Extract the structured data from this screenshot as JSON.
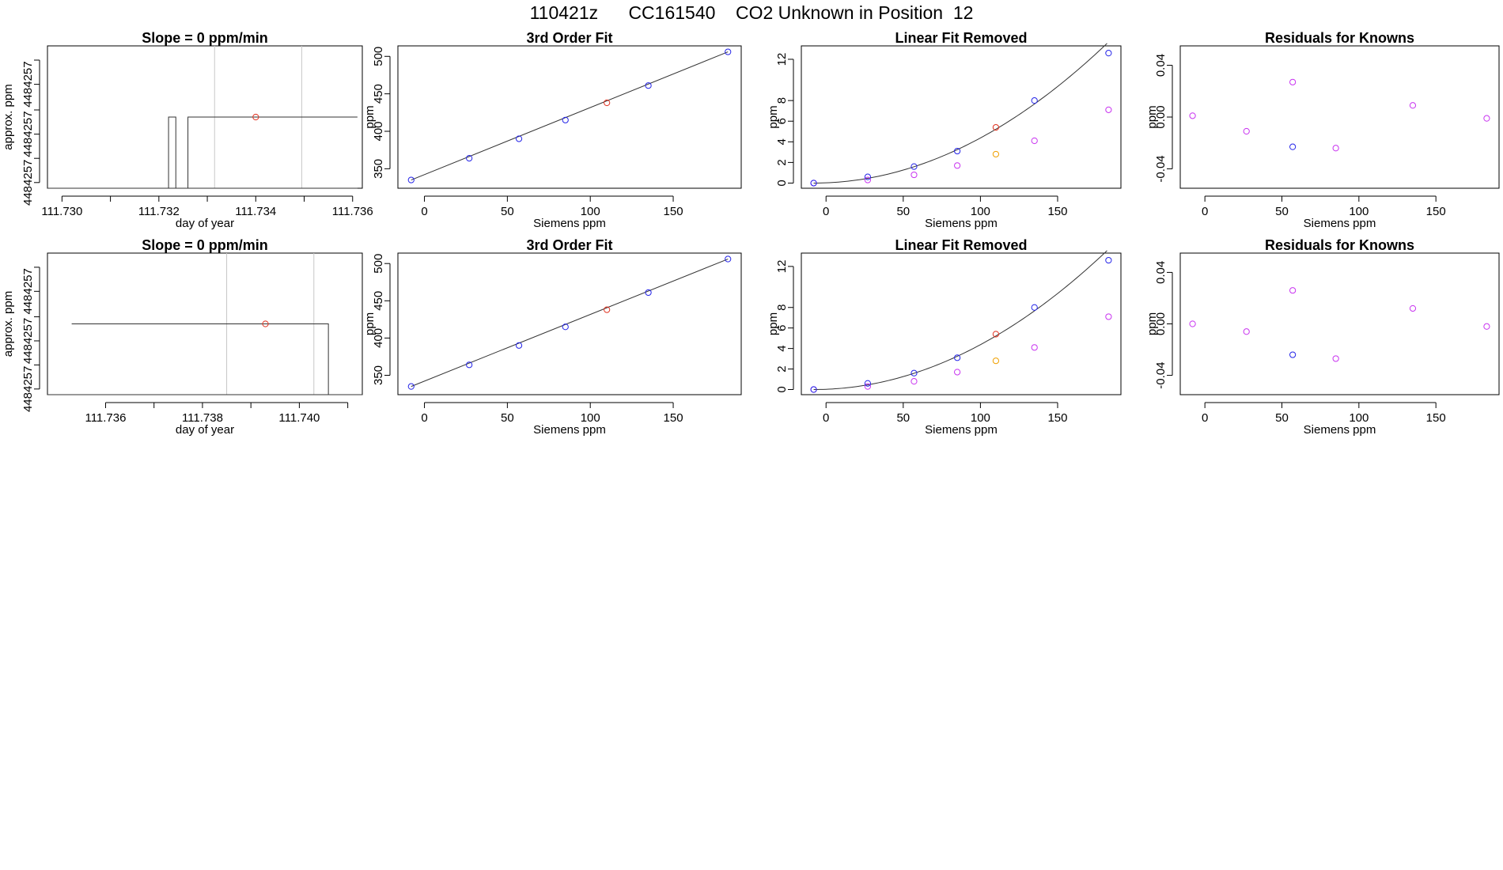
{
  "page": {
    "title": "110421z      CC161540    CO2 Unknown in Position  12"
  },
  "colors": {
    "axis": "#000000",
    "line": "#333333",
    "gridline": "#c8c8c8",
    "unknown": "#e0301e",
    "known": "#2323e8",
    "residual": "#c832f0",
    "offscale": "#f0a000"
  },
  "chart_data": [
    {
      "panel": "row1-time",
      "type": "line",
      "title": "Slope =  0  ppm/min",
      "xlabel": "day of year",
      "ylabel": "approx. ppm",
      "xlim": [
        111.7297,
        111.7362
      ],
      "ylim": [
        0,
        10
      ],
      "xticks": [
        111.73,
        111.731,
        111.732,
        111.733,
        111.734,
        111.735,
        111.736
      ],
      "xtick_labels": [
        "111.730",
        "",
        "111.732",
        "",
        "111.734",
        "",
        "111.736"
      ],
      "yticks": [
        0.4,
        2.1,
        3.8,
        5.5,
        7.3,
        9.0
      ],
      "ytick_labels": [
        "4484257",
        "",
        "4484257",
        "",
        "4484257",
        ""
      ],
      "trace": [
        [
          111.7322,
          0
        ],
        [
          111.7322,
          5
        ],
        [
          111.73235,
          5
        ],
        [
          111.73235,
          0
        ],
        [
          111.7326,
          0
        ],
        [
          111.7326,
          5
        ],
        [
          111.7361,
          5
        ]
      ],
      "baseline": [
        [
          111.7297,
          0
        ],
        [
          111.7361,
          0
        ]
      ],
      "vlines": [
        111.73315,
        111.73495
      ],
      "marker": {
        "x": 111.734,
        "y": 5
      }
    },
    {
      "panel": "row1-fit",
      "type": "scatter",
      "title": "3rd Order Fit",
      "xlabel": "Siemens ppm",
      "ylabel": "ppm",
      "xlim": [
        -16,
        191
      ],
      "ylim": [
        324,
        514
      ],
      "xticks": [
        0,
        50,
        100,
        150
      ],
      "yticks": [
        350,
        400,
        450,
        500
      ],
      "fit": {
        "type": "line",
        "x0": -8,
        "y0": 335,
        "x1": 183,
        "y1": 506
      },
      "known": [
        [
          -8,
          335
        ],
        [
          27,
          364
        ],
        [
          57,
          390
        ],
        [
          85,
          415
        ],
        [
          135,
          461
        ],
        [
          183,
          506
        ]
      ],
      "unknown": [
        [
          110,
          438
        ]
      ]
    },
    {
      "panel": "row1-linear-removed",
      "type": "scatter",
      "title": "Linear Fit Removed",
      "xlabel": "Siemens ppm",
      "ylabel": "ppm",
      "xlim": [
        -16,
        191
      ],
      "ylim": [
        -0.5,
        13.3
      ],
      "xticks": [
        0,
        50,
        100,
        150
      ],
      "yticks": [
        0,
        2,
        4,
        6,
        8,
        12
      ],
      "curve": {
        "a": 0.000375,
        "x0": -8
      },
      "known": [
        [
          -8,
          0
        ],
        [
          27,
          0.6
        ],
        [
          57,
          1.6
        ],
        [
          85,
          3.1
        ],
        [
          135,
          8.0
        ],
        [
          183,
          12.6
        ]
      ],
      "residual": [
        [
          -8,
          0
        ],
        [
          27,
          0.3
        ],
        [
          57,
          0.8
        ],
        [
          85,
          1.7
        ],
        [
          135,
          4.1
        ],
        [
          183,
          7.1
        ]
      ],
      "unknown": [
        [
          110,
          5.4
        ]
      ],
      "offscale": [
        [
          110,
          2.8
        ]
      ]
    },
    {
      "panel": "row1-residuals",
      "type": "scatter",
      "title": "Residuals for Knowns",
      "xlabel": "Siemens ppm",
      "ylabel": "ppm",
      "xlim": [
        -16,
        191
      ],
      "ylim": [
        -0.055,
        0.055
      ],
      "xticks": [
        0,
        50,
        100,
        150
      ],
      "yticks": [
        -0.04,
        0.0,
        0.04
      ],
      "ytick_labels": [
        "-0.04",
        "0.00",
        "0.04"
      ],
      "residual": [
        [
          -8,
          0.001
        ],
        [
          27,
          -0.011
        ],
        [
          57,
          0.027
        ],
        [
          85,
          -0.024
        ],
        [
          135,
          0.009
        ],
        [
          183,
          -0.001
        ]
      ],
      "known": [
        [
          57,
          -0.023
        ]
      ]
    },
    {
      "panel": "row2-time",
      "type": "line",
      "title": "Slope =  0  ppm/min",
      "xlabel": "day of year",
      "ylabel": "approx. ppm",
      "xlim": [
        111.7348,
        111.7413
      ],
      "ylim": [
        0,
        10
      ],
      "xticks": [
        111.736,
        111.737,
        111.738,
        111.739,
        111.74,
        111.741
      ],
      "xtick_labels": [
        "111.736",
        "",
        "111.738",
        "",
        "111.740",
        ""
      ],
      "yticks": [
        0.4,
        2.1,
        3.8,
        5.5,
        7.3,
        9.0
      ],
      "ytick_labels": [
        "4484257",
        "",
        "4484257",
        "",
        "4484257",
        ""
      ],
      "trace": [
        [
          111.7353,
          5
        ],
        [
          111.7406,
          5
        ],
        [
          111.7406,
          0
        ]
      ],
      "baseline": [
        [
          111.7348,
          0
        ],
        [
          111.7413,
          0
        ]
      ],
      "vlines": [
        111.7385,
        111.7403
      ],
      "marker": {
        "x": 111.7393,
        "y": 5
      }
    },
    {
      "panel": "row2-fit",
      "type": "scatter",
      "title": "3rd Order Fit",
      "xlabel": "Siemens ppm",
      "ylabel": "ppm",
      "xlim": [
        -16,
        191
      ],
      "ylim": [
        324,
        514
      ],
      "xticks": [
        0,
        50,
        100,
        150
      ],
      "yticks": [
        350,
        400,
        450,
        500
      ],
      "fit": {
        "type": "line",
        "x0": -8,
        "y0": 335,
        "x1": 183,
        "y1": 506
      },
      "known": [
        [
          -8,
          335
        ],
        [
          27,
          364
        ],
        [
          57,
          390
        ],
        [
          85,
          415
        ],
        [
          135,
          461
        ],
        [
          183,
          506
        ]
      ],
      "unknown": [
        [
          110,
          438
        ]
      ]
    },
    {
      "panel": "row2-linear-removed",
      "type": "scatter",
      "title": "Linear Fit Removed",
      "xlabel": "Siemens ppm",
      "ylabel": "ppm",
      "xlim": [
        -16,
        191
      ],
      "ylim": [
        -0.5,
        13.3
      ],
      "xticks": [
        0,
        50,
        100,
        150
      ],
      "yticks": [
        0,
        2,
        4,
        6,
        8,
        12
      ],
      "curve": {
        "a": 0.000375,
        "x0": -8
      },
      "known": [
        [
          -8,
          0
        ],
        [
          27,
          0.6
        ],
        [
          57,
          1.6
        ],
        [
          85,
          3.1
        ],
        [
          135,
          8.0
        ],
        [
          183,
          12.6
        ]
      ],
      "residual": [
        [
          -8,
          0
        ],
        [
          27,
          0.3
        ],
        [
          57,
          0.8
        ],
        [
          85,
          1.7
        ],
        [
          135,
          4.1
        ],
        [
          183,
          7.1
        ]
      ],
      "unknown": [
        [
          110,
          5.4
        ]
      ],
      "offscale": [
        [
          110,
          2.8
        ]
      ]
    },
    {
      "panel": "row2-residuals",
      "type": "scatter",
      "title": "Residuals for Knowns",
      "xlabel": "Siemens ppm",
      "ylabel": "ppm",
      "xlim": [
        -16,
        191
      ],
      "ylim": [
        -0.055,
        0.055
      ],
      "xticks": [
        0,
        50,
        100,
        150
      ],
      "yticks": [
        -0.04,
        0.0,
        0.04
      ],
      "ytick_labels": [
        "-0.04",
        "0.00",
        "0.04"
      ],
      "residual": [
        [
          -8,
          0.0
        ],
        [
          27,
          -0.006
        ],
        [
          57,
          0.026
        ],
        [
          85,
          -0.027
        ],
        [
          135,
          0.012
        ],
        [
          183,
          -0.002
        ]
      ],
      "known": [
        [
          57,
          -0.024
        ]
      ]
    }
  ]
}
